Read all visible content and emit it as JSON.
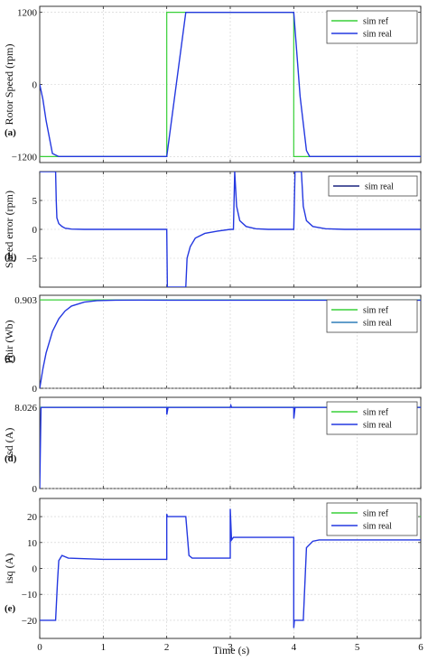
{
  "colors": {
    "ref": "#38d038",
    "real": "#2438e0",
    "real_dark": "#1a237e",
    "real_teal": "#2e7fb8"
  },
  "x_axis": {
    "label": "Time (s)",
    "ticks": [
      "0",
      "1",
      "2",
      "3",
      "4",
      "5",
      "6"
    ],
    "xlim": [
      0,
      6
    ]
  },
  "chart_data": [
    {
      "type": "line",
      "letter": "(a)",
      "ylabel": "Rotor Speed (rpm)",
      "ylim": [
        -1300,
        1300
      ],
      "yticks": [
        {
          "v": 1200,
          "t": "1200"
        },
        {
          "v": 0,
          "t": "0"
        },
        {
          "v": -1200,
          "t": "−1200"
        }
      ],
      "grid": true,
      "legend": [
        "sim ref",
        "sim real"
      ],
      "series": [
        {
          "name": "sim ref",
          "x": [
            0,
            2,
            2,
            4,
            4,
            6
          ],
          "y": [
            -1200,
            -1200,
            1200,
            1200,
            -1200,
            -1200
          ]
        },
        {
          "name": "sim real",
          "x": [
            0,
            0.05,
            0.1,
            0.2,
            0.3,
            2.0,
            2.3,
            4.0,
            4.1,
            4.2,
            4.25,
            6.0
          ],
          "y": [
            0,
            -250,
            -600,
            -1150,
            -1200,
            -1200,
            1200,
            1200,
            -200,
            -1100,
            -1200,
            -1200
          ]
        }
      ]
    },
    {
      "type": "line",
      "letter": "(b)",
      "ylabel": "Speed error (rpm)",
      "ylim": [
        -10,
        10
      ],
      "yticks": [
        {
          "v": 5,
          "t": "5"
        },
        {
          "v": 0,
          "t": "0"
        },
        {
          "v": -5,
          "t": "−5"
        }
      ],
      "grid": true,
      "legend": [
        "sim real"
      ],
      "series": [
        {
          "name": "sim real",
          "x": [
            0,
            0.25,
            0.26,
            0.27,
            0.3,
            0.35,
            0.4,
            0.5,
            0.7,
            1.0,
            2.0,
            2.01,
            2.05,
            2.3,
            2.32,
            2.37,
            2.45,
            2.6,
            2.8,
            3.0,
            3.05,
            3.07,
            3.1,
            3.15,
            3.25,
            3.4,
            3.6,
            4.0,
            4.02,
            4.1,
            4.12,
            4.15,
            4.2,
            4.3,
            4.5,
            4.8,
            6.0
          ],
          "y": [
            10,
            10,
            5,
            2,
            1,
            0.5,
            0.2,
            0.05,
            0,
            0,
            0,
            -10,
            -10,
            -10,
            -5,
            -3,
            -1.5,
            -0.7,
            -0.3,
            0,
            0,
            10,
            4,
            1.5,
            0.5,
            0.1,
            0,
            0,
            10,
            10,
            10,
            4,
            1.5,
            0.5,
            0.1,
            0,
            0
          ]
        }
      ]
    },
    {
      "type": "line",
      "letter": "(c)",
      "ylabel": "Phir (Wb)",
      "ylim": [
        0,
        0.95
      ],
      "yticks": [
        {
          "v": 0.903,
          "t": "0.903"
        },
        {
          "v": 0,
          "t": "0"
        }
      ],
      "grid": true,
      "legend": [
        "sim ref",
        "sim real"
      ],
      "series": [
        {
          "name": "sim ref",
          "x": [
            0,
            6
          ],
          "y": [
            0.903,
            0.903
          ]
        },
        {
          "name": "sim real",
          "x": [
            0,
            0.05,
            0.1,
            0.2,
            0.3,
            0.4,
            0.5,
            0.7,
            0.9,
            1.2,
            1.6,
            2.0,
            6.0
          ],
          "y": [
            0,
            0.2,
            0.36,
            0.58,
            0.71,
            0.79,
            0.84,
            0.88,
            0.895,
            0.9,
            0.901,
            0.9,
            0.9
          ]
        }
      ]
    },
    {
      "type": "line",
      "letter": "(d)",
      "ylabel": "isd (A)",
      "ylim": [
        0,
        9
      ],
      "yticks": [
        {
          "v": 8.026,
          "t": "8.026"
        },
        {
          "v": 0,
          "t": "0"
        }
      ],
      "grid": true,
      "legend": [
        "sim ref",
        "sim real"
      ],
      "series": [
        {
          "name": "sim ref",
          "x": [
            0,
            6
          ],
          "y": [
            8.026,
            8.026
          ]
        },
        {
          "name": "sim real",
          "x": [
            0,
            0.02,
            0.03,
            2.0,
            2.001,
            2.02,
            3.0,
            3.01,
            3.02,
            4.0,
            4.001,
            4.02,
            6.0
          ],
          "y": [
            0,
            8.0,
            8.0,
            8.0,
            7.3,
            8.0,
            8.0,
            8.2,
            8.0,
            8.0,
            6.9,
            8.0,
            8.0
          ]
        }
      ]
    },
    {
      "type": "line",
      "letter": "(e)",
      "ylabel": "isq (A)",
      "ylim": [
        -27,
        27
      ],
      "yticks": [
        {
          "v": 20,
          "t": "20"
        },
        {
          "v": 10,
          "t": "10"
        },
        {
          "v": 0,
          "t": "0"
        },
        {
          "v": -10,
          "t": "−10"
        },
        {
          "v": -20,
          "t": "−20"
        }
      ],
      "grid": true,
      "legend": [
        "sim ref",
        "sim real"
      ],
      "series": [
        {
          "name": "sim ref",
          "x": [
            5.98,
            6.0
          ],
          "y": [
            20,
            20
          ]
        },
        {
          "name": "sim real",
          "x": [
            0,
            0.01,
            0.25,
            0.28,
            0.3,
            0.35,
            0.45,
            1.0,
            2.0,
            2.0,
            2.01,
            2.05,
            2.3,
            2.35,
            2.4,
            3.0,
            3.0,
            3.02,
            3.05,
            3.1,
            4.0,
            4.0,
            4.01,
            4.05,
            4.15,
            4.2,
            4.3,
            4.4,
            6.0
          ],
          "y": [
            -20,
            -20,
            -20,
            -5,
            3,
            5,
            4,
            3.5,
            3.5,
            21,
            20,
            20,
            20,
            5,
            4,
            4,
            23,
            11,
            12,
            12,
            12,
            -23,
            -20,
            -20,
            -20,
            8,
            10.5,
            11,
            11
          ]
        }
      ]
    }
  ]
}
